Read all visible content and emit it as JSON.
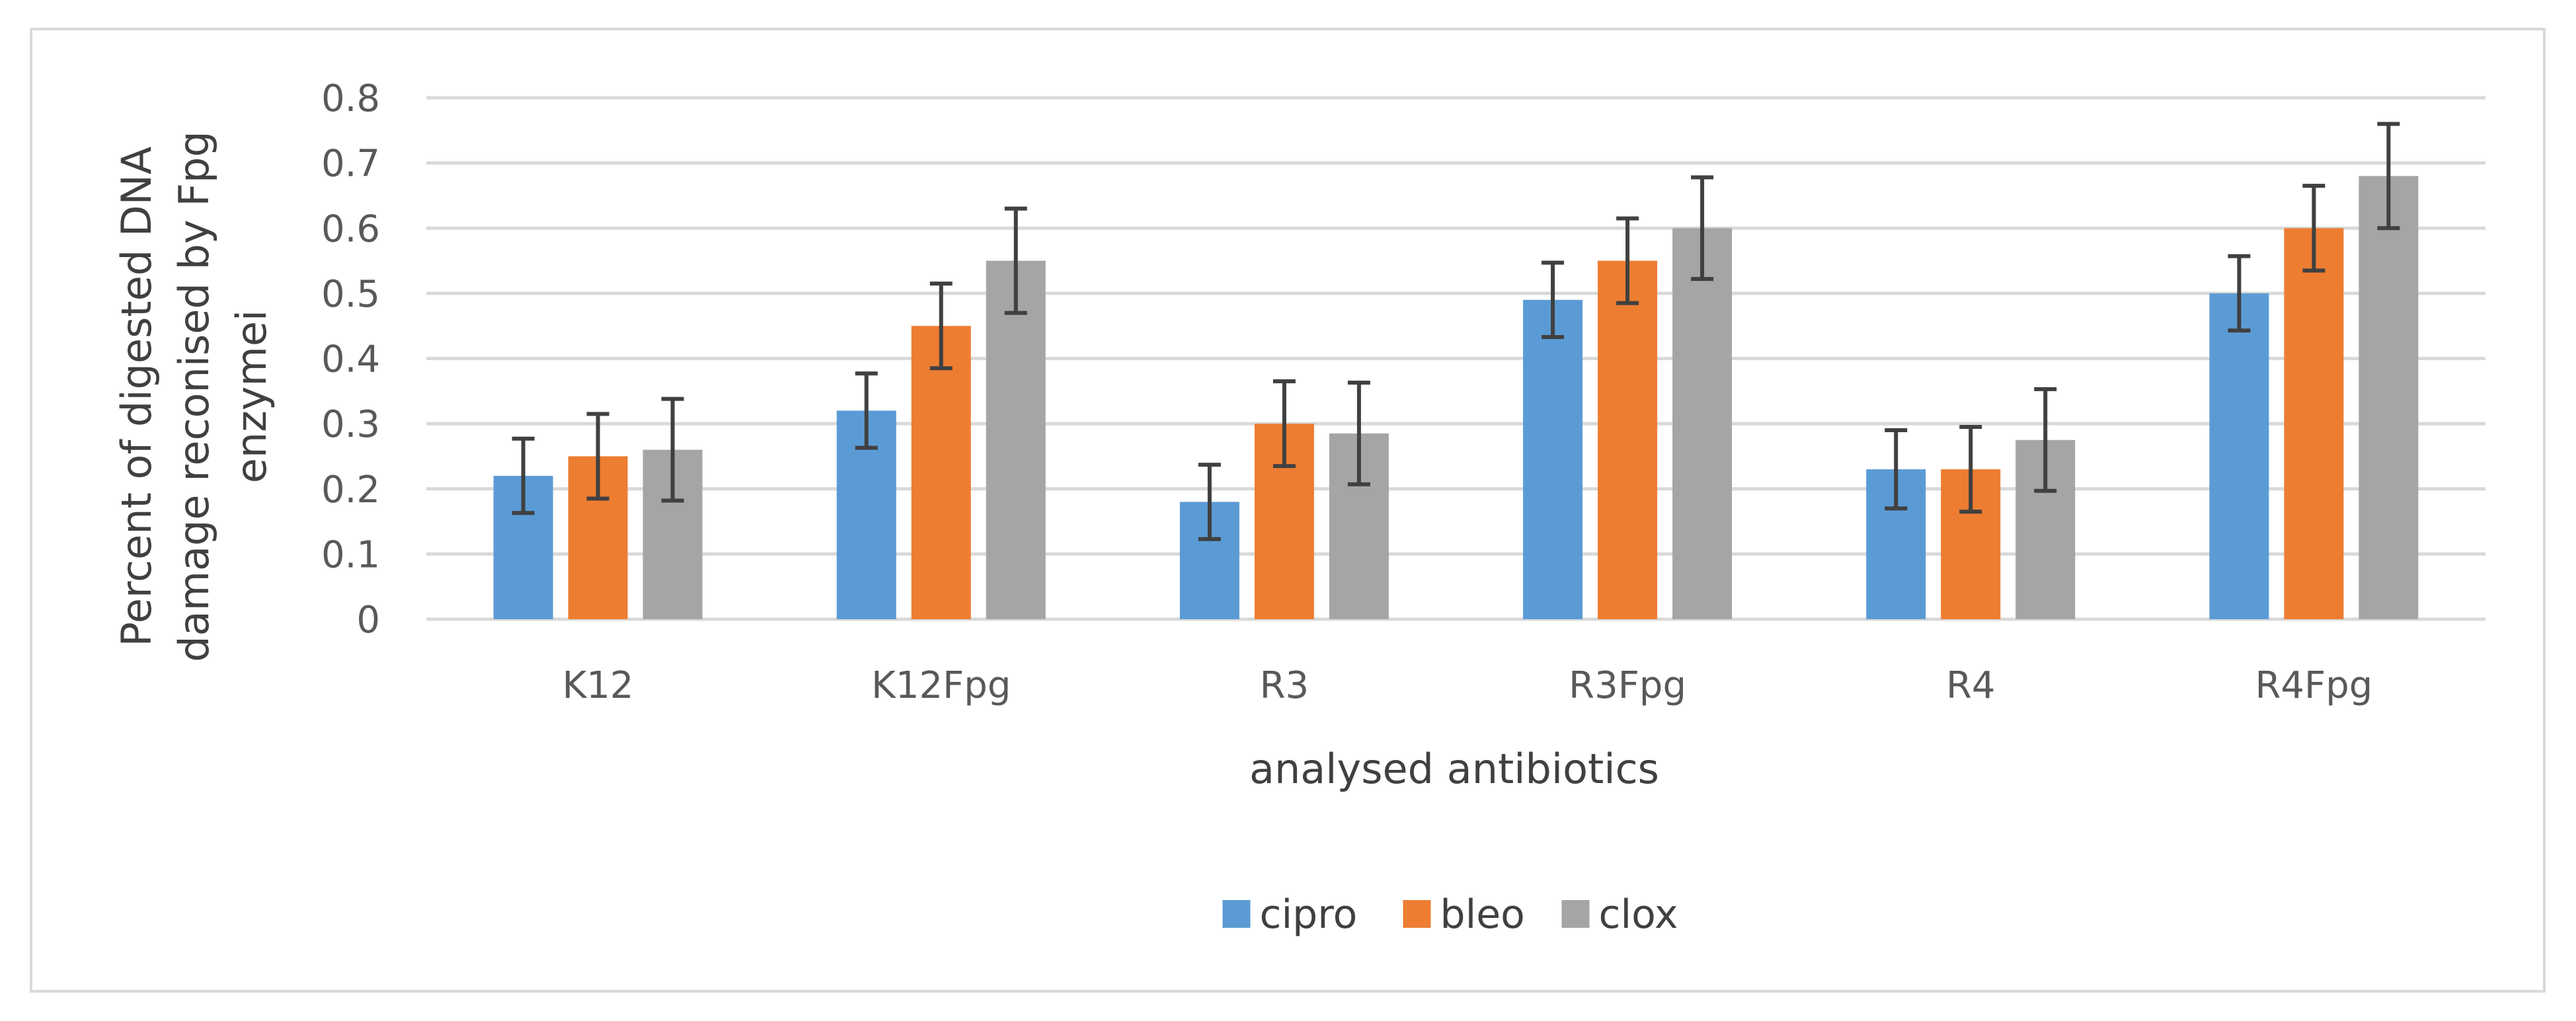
{
  "chart_data": {
    "type": "bar",
    "title": "",
    "xlabel": "analysed antibiotics",
    "ylabel_lines": [
      "Percent of digested DNA",
      "damage reconised by Fpg",
      "enzymei"
    ],
    "categories": [
      "K12",
      "K12Fpg",
      "R3",
      "R3Fpg",
      "R4",
      "R4Fpg"
    ],
    "ylim": [
      0,
      0.8
    ],
    "yticks": [
      "0",
      "0.1",
      "0.2",
      "0.3",
      "0.4",
      "0.5",
      "0.6",
      "0.7",
      "0.8"
    ],
    "grid": true,
    "legend_position": "bottom",
    "series": [
      {
        "name": "cipro",
        "color": "#5b9bd5",
        "values": [
          0.22,
          0.32,
          0.18,
          0.49,
          0.23,
          0.5
        ],
        "errors": [
          0.057,
          0.057,
          0.057,
          0.057,
          0.06,
          0.057
        ]
      },
      {
        "name": "bleo",
        "color": "#ed7d31",
        "values": [
          0.25,
          0.45,
          0.3,
          0.55,
          0.23,
          0.6
        ],
        "errors": [
          0.065,
          0.065,
          0.065,
          0.065,
          0.065,
          0.065
        ]
      },
      {
        "name": "clox",
        "color": "#a5a5a5",
        "values": [
          0.26,
          0.55,
          0.285,
          0.6,
          0.275,
          0.68
        ],
        "errors": [
          0.078,
          0.08,
          0.078,
          0.078,
          0.078,
          0.08
        ]
      }
    ]
  }
}
